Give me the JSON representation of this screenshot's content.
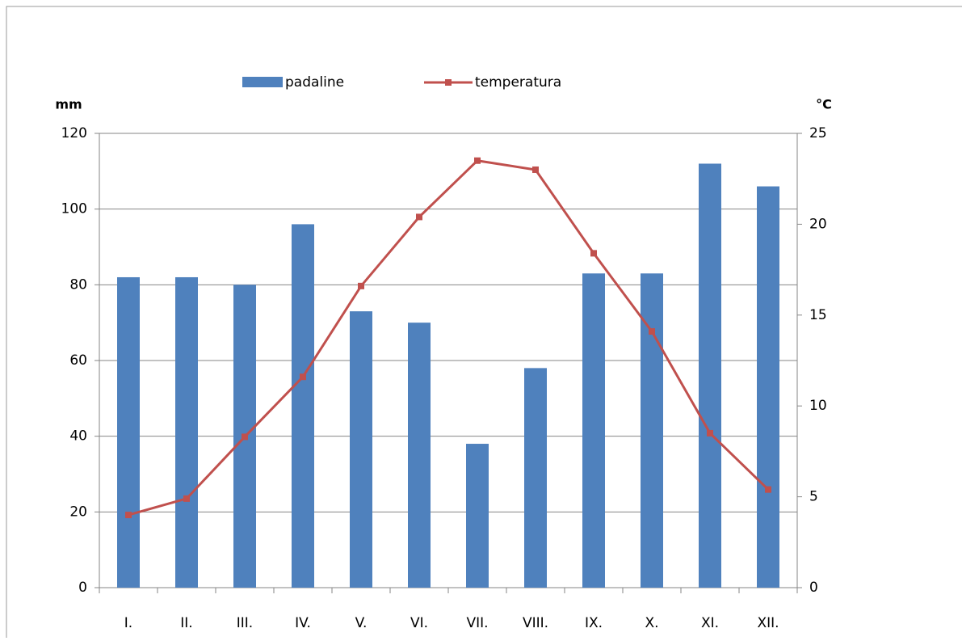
{
  "chart_data": {
    "type": "bar",
    "categories": [
      "I.",
      "II.",
      "III.",
      "IV.",
      "V.",
      "VI.",
      "VII.",
      "VIII.",
      "IX.",
      "X.",
      "XI.",
      "XII."
    ],
    "series": [
      {
        "name": "padaline",
        "type": "bar",
        "color": "#4f81bd",
        "values": [
          82,
          82,
          80,
          96,
          73,
          70,
          38,
          58,
          83,
          83,
          112,
          106
        ]
      },
      {
        "name": "temperatura",
        "type": "line",
        "axis": "y2",
        "color": "#c0504d",
        "values": [
          4.0,
          4.9,
          8.3,
          11.6,
          16.6,
          20.4,
          23.5,
          23.0,
          18.4,
          14.1,
          8.5,
          5.4
        ]
      }
    ],
    "ylabel": "mm",
    "y2label": "°C",
    "ylim": [
      0,
      120
    ],
    "yticks": [
      0,
      20,
      40,
      60,
      80,
      100,
      120
    ],
    "y2lim": [
      0,
      25
    ],
    "y2ticks": [
      0,
      5,
      10,
      15,
      20,
      25
    ],
    "grid": true,
    "legend": "top"
  }
}
